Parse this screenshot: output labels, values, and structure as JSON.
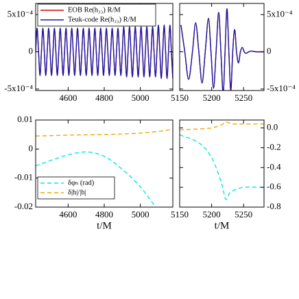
{
  "chart_data": [
    {
      "type": "line",
      "x": [
        4420,
        4428,
        4436,
        4444,
        4452,
        4460,
        4468,
        4476,
        4484,
        4492,
        4500,
        4508,
        4516,
        4524,
        4532,
        4540,
        4548,
        4556,
        4564,
        4572,
        4580,
        4588,
        4596,
        4604,
        4612,
        4620,
        4628,
        4636,
        4644,
        4652,
        4660,
        4668,
        4676,
        4684,
        4692,
        4700,
        4708,
        4716,
        4724,
        4732,
        4740,
        4748,
        4756,
        4764,
        4772,
        4780,
        4788,
        4796,
        4804,
        4812,
        4820,
        4828,
        4836,
        4844,
        4852,
        4860,
        4868,
        4876,
        4884,
        4892,
        4900,
        4908,
        4916,
        4924,
        4932,
        4940,
        4948,
        4956,
        4964,
        4972,
        4980,
        4988,
        4996,
        5004,
        5012,
        5020,
        5028,
        5036,
        5044,
        5052,
        5060,
        5068,
        5076,
        5084,
        5092,
        5100,
        5108,
        5116,
        5124,
        5132,
        5140,
        5148,
        5156,
        5164,
        5172,
        5180
      ],
      "series": [
        {
          "name": "EOB Re(h₃₃) R/M",
          "color": "#d00000",
          "values": [
            0,
            0.00032,
            0,
            -0.00032,
            0,
            0.00032,
            0,
            -0.00032,
            0,
            0.00032,
            0,
            -0.00032,
            0,
            0.00032,
            0,
            -0.00032,
            0,
            0.00032,
            0,
            -0.00032,
            0,
            0.00032,
            0,
            -0.00032,
            0,
            0.00032,
            0,
            -0.00032,
            0,
            0.00032,
            0,
            -0.00032,
            0,
            0.00032,
            0,
            -0.00032,
            0,
            0.00032,
            0,
            -0.00032,
            0,
            0.00032,
            0,
            -0.00032,
            0,
            0.00032,
            0,
            -0.00032,
            0,
            0.00032,
            0,
            -0.00032,
            0,
            0.00032,
            0,
            -0.00032,
            0,
            0.00032,
            0,
            -0.00032,
            0,
            0.00034,
            0,
            -0.00034,
            0,
            0.00034,
            0,
            -0.00034,
            0,
            0.00034,
            0,
            -0.00034,
            0,
            0.00034,
            0,
            -0.00034,
            0,
            0.00034,
            0,
            -0.00034,
            0,
            0.00034,
            0,
            -0.00034,
            0,
            0.00036,
            0,
            -0.00036,
            0,
            0.00036,
            0,
            -0.00036,
            0,
            0.00036,
            0,
            -0.00036
          ]
        },
        {
          "name": "Teuk-code Re(h₃₃) R/M",
          "color": "#1a1aaa",
          "values": [
            0,
            0.00032,
            0,
            -0.00032,
            0,
            0.00032,
            0,
            -0.00032,
            0,
            0.00032,
            0,
            -0.00032,
            0,
            0.00032,
            0,
            -0.00032,
            0,
            0.00032,
            0,
            -0.00032,
            0,
            0.00032,
            0,
            -0.00032,
            0,
            0.00032,
            0,
            -0.00032,
            0,
            0.00032,
            0,
            -0.00032,
            0,
            0.00032,
            0,
            -0.00032,
            0,
            0.00032,
            0,
            -0.00032,
            0,
            0.00032,
            0,
            -0.00032,
            0,
            0.00032,
            0,
            -0.00032,
            0,
            0.00032,
            0,
            -0.00032,
            0,
            0.00032,
            0,
            -0.00032,
            0,
            0.00032,
            0,
            -0.00032,
            0,
            0.00034,
            0,
            -0.00034,
            0,
            0.00034,
            0,
            -0.00034,
            0,
            0.00034,
            0,
            -0.00034,
            0,
            0.00034,
            0,
            -0.00034,
            0,
            0.00034,
            0,
            -0.00034,
            0,
            0.00034,
            0,
            -0.00034,
            0,
            0.00036,
            0,
            -0.00036,
            0,
            0.00036,
            0,
            -0.00036,
            0,
            0.00036,
            0,
            -0.00036
          ]
        }
      ],
      "xlim": [
        4420,
        5180
      ],
      "xticks": [
        4600,
        4800,
        5000
      ],
      "ylim": [
        -0.00052,
        0.00065
      ],
      "yticks": [
        {
          "value": 0.0005,
          "label": "5x10⁻⁴"
        },
        0,
        {
          "value": -0.0005,
          "label": "-5x10⁻⁴"
        }
      ],
      "legend": true,
      "legend_loc": "upper left"
    },
    {
      "type": "line",
      "x": [
        5152,
        5158,
        5164,
        5170,
        5175,
        5180,
        5185,
        5190,
        5195,
        5199,
        5203,
        5207,
        5211,
        5214.5,
        5218,
        5221,
        5224,
        5227,
        5230,
        5233,
        5236,
        5239,
        5242,
        5245,
        5248,
        5251,
        5254,
        5258,
        5262,
        5270,
        5282
      ],
      "series": [
        {
          "color": "#d00000",
          "axis": "y2",
          "values": [
            0.00036,
            0,
            -0.00037,
            0,
            0.00039,
            0,
            -0.00042,
            0,
            0.00045,
            0,
            -0.00049,
            0,
            0.00053,
            0,
            -0.00056,
            0,
            0.00058,
            0,
            -0.00053,
            0,
            0.0003,
            0,
            -0.00015,
            0,
            6e-05,
            0,
            -2e-05,
            0,
            1e-05,
            0,
            0
          ]
        },
        {
          "color": "#1a1aaa",
          "axis": "y2",
          "values": [
            0.00036,
            0,
            -0.00037,
            0,
            0.00039,
            0,
            -0.00042,
            0,
            0.00045,
            0,
            -0.00049,
            0,
            0.00053,
            0,
            -0.00056,
            0,
            0.00058,
            0,
            -0.0005,
            0,
            0.0003,
            0,
            -0.00015,
            0,
            6e-05,
            0,
            -2e-05,
            0,
            1e-05,
            0,
            0
          ]
        }
      ],
      "xlim": [
        5150,
        5282
      ],
      "xticks": [
        5150,
        5200,
        5250
      ],
      "y2lim": [
        -0.00052,
        0.00065
      ],
      "y2ticks": [
        {
          "value": 0.0005,
          "label": "5x10⁻⁴"
        },
        0,
        {
          "value": -0.0005,
          "label": "-5x10⁻⁴"
        }
      ]
    },
    {
      "type": "line",
      "x": [
        4420,
        4500,
        4600,
        4700,
        4800,
        4900,
        5000,
        5090,
        5180
      ],
      "series": [
        {
          "name": "δφₕ (rad)",
          "color": "#00e5ee",
          "dash": true,
          "values": [
            -0.0058,
            -0.004,
            -0.002,
            -0.001,
            -0.0025,
            -0.007,
            -0.013,
            -0.0205,
            null
          ]
        },
        {
          "name": "δ|h|/|h|",
          "color": "#f0a500",
          "dash": true,
          "values": [
            0.0045,
            0.0046,
            0.0048,
            0.0049,
            0.005,
            0.0052,
            0.0055,
            0.006,
            0.0068
          ]
        }
      ],
      "xlim": [
        4420,
        5180
      ],
      "xticks": [
        4600,
        4800,
        5000
      ],
      "ylim": [
        -0.02,
        0.01
      ],
      "yticks": [
        0.01,
        0,
        -0.01,
        -0.02
      ],
      "xlabel": "t/M",
      "legend": true,
      "legend_loc": "lower left"
    },
    {
      "type": "line",
      "x": [
        5150,
        5180,
        5200,
        5215,
        5222,
        5228,
        5235,
        5250,
        5282
      ],
      "series": [
        {
          "color": "#00e5ee",
          "dash": true,
          "axis": "y2",
          "values": [
            -0.07,
            -0.15,
            -0.3,
            -0.55,
            -0.72,
            -0.66,
            -0.63,
            -0.6,
            -0.6
          ]
        },
        {
          "color": "#f0a500",
          "dash": true,
          "axis": "y2",
          "values": [
            -0.02,
            -0.01,
            0,
            0.03,
            0.06,
            0.05,
            0.04,
            0.04,
            0.04
          ]
        }
      ],
      "xlim": [
        5150,
        5282
      ],
      "xticks": [
        5150,
        5200,
        5250
      ],
      "y2lim": [
        -0.8,
        0.08
      ],
      "y2ticks": [
        {
          "value": 0,
          "label": "0.0"
        },
        -0.2,
        -0.4,
        -0.6,
        -0.8
      ],
      "xlabel": "t/M"
    }
  ]
}
